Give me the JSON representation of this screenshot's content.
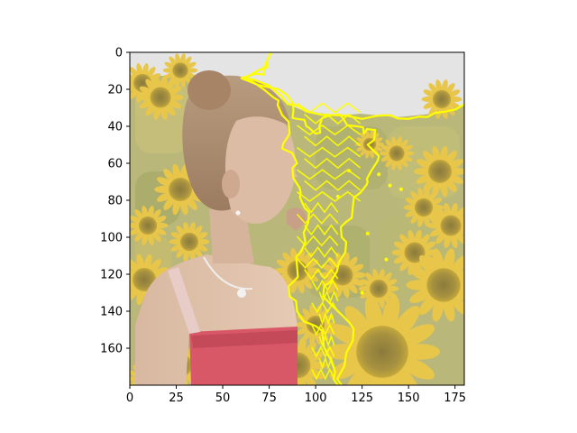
{
  "chart_data": {
    "type": "heatmap",
    "description_kind": "image-with-overlay",
    "title": "",
    "xlabel": "",
    "ylabel": "",
    "xlim": [
      0,
      180
    ],
    "ylim": [
      180,
      0
    ],
    "x_ticks": [
      0,
      25,
      50,
      75,
      100,
      125,
      150,
      175
    ],
    "y_ticks": [
      0,
      20,
      40,
      60,
      80,
      100,
      120,
      140,
      160
    ],
    "grid": false,
    "legend": "none",
    "image_content": "girl-in-sunflower-field",
    "overlay_color": "#ffff00",
    "overlay_contour_points": [
      [
        76,
        0
      ],
      [
        72,
        12
      ],
      [
        60,
        14
      ],
      [
        75,
        18
      ],
      [
        82,
        24
      ],
      [
        85,
        28
      ],
      [
        88,
        32
      ],
      [
        90,
        36
      ],
      [
        95,
        40
      ],
      [
        100,
        44
      ],
      [
        102,
        40
      ],
      [
        108,
        34
      ],
      [
        115,
        36
      ],
      [
        122,
        40
      ],
      [
        126,
        44
      ],
      [
        132,
        42
      ],
      [
        128,
        50
      ],
      [
        134,
        56
      ],
      [
        130,
        64
      ],
      [
        128,
        70
      ],
      [
        124,
        76
      ],
      [
        120,
        84
      ],
      [
        116,
        92
      ],
      [
        114,
        100
      ],
      [
        116,
        108
      ],
      [
        112,
        116
      ],
      [
        108,
        124
      ],
      [
        104,
        132
      ],
      [
        110,
        138
      ],
      [
        118,
        146
      ],
      [
        120,
        156
      ],
      [
        116,
        166
      ],
      [
        112,
        176
      ],
      [
        114,
        180
      ]
    ],
    "overlay_left_edge_points": [
      [
        76,
        0
      ],
      [
        74,
        8
      ],
      [
        62,
        14
      ],
      [
        72,
        20
      ],
      [
        80,
        26
      ],
      [
        82,
        34
      ],
      [
        86,
        44
      ],
      [
        82,
        52
      ],
      [
        90,
        60
      ],
      [
        88,
        68
      ],
      [
        92,
        76
      ],
      [
        94,
        84
      ],
      [
        96,
        92
      ],
      [
        94,
        100
      ],
      [
        92,
        108
      ],
      [
        90,
        116
      ],
      [
        88,
        124
      ],
      [
        86,
        132
      ],
      [
        90,
        140
      ],
      [
        100,
        148
      ],
      [
        104,
        156
      ],
      [
        108,
        166
      ],
      [
        110,
        176
      ],
      [
        112,
        180
      ]
    ],
    "sky_boundary_points": [
      [
        60,
        14
      ],
      [
        80,
        20
      ],
      [
        88,
        28
      ],
      [
        95,
        32
      ],
      [
        110,
        34
      ],
      [
        125,
        36
      ],
      [
        140,
        34
      ],
      [
        150,
        36
      ],
      [
        160,
        35
      ],
      [
        170,
        32
      ],
      [
        180,
        28
      ]
    ]
  }
}
